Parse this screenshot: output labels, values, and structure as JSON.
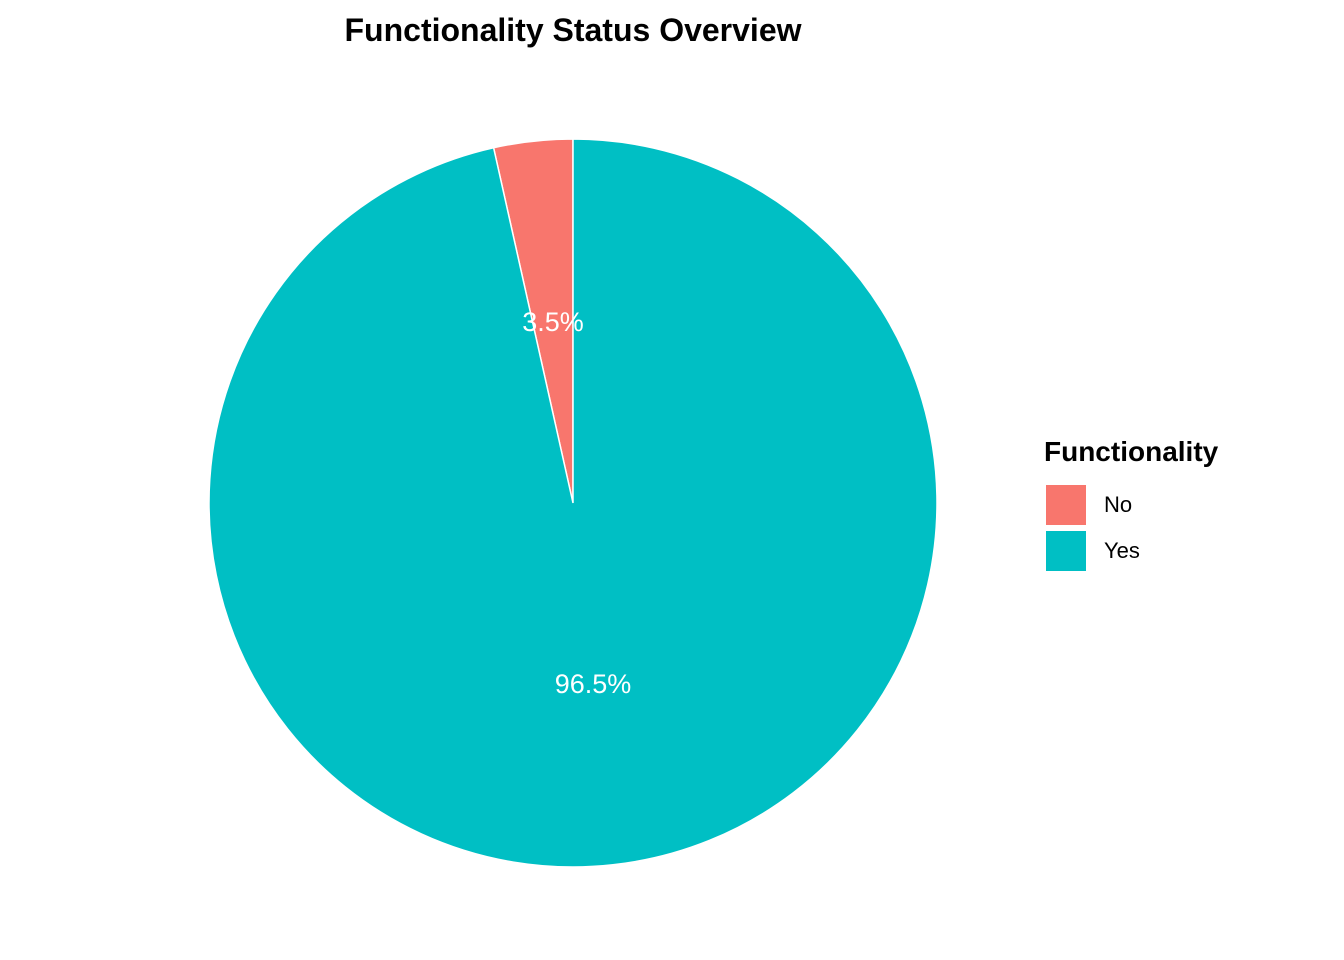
{
  "chart_data": {
    "type": "pie",
    "title": "Functionality Status Overview",
    "legend_title": "Functionality",
    "legend_position": "right",
    "slices": [
      {
        "label": "No",
        "value": 3.5,
        "display": "3.5%",
        "color": "#F8766D"
      },
      {
        "label": "Yes",
        "value": 96.5,
        "display": "96.5%",
        "color": "#00BFC4"
      }
    ]
  }
}
